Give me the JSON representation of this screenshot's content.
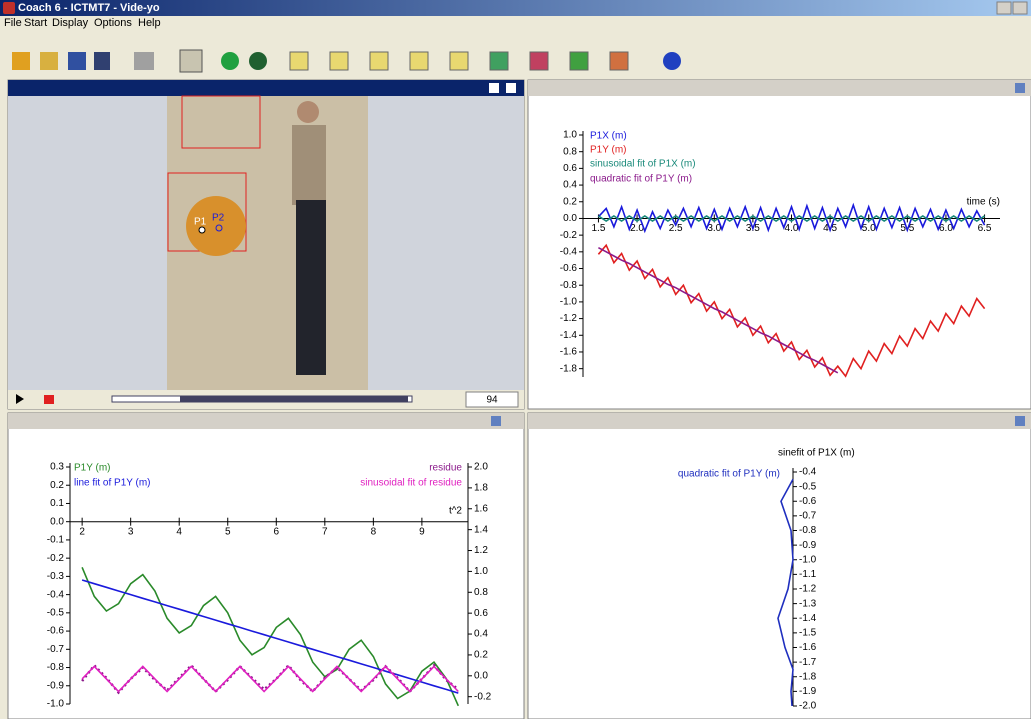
{
  "window": {
    "title": "Coach 6 - ICTMT7 - Vide-yo"
  },
  "menu": [
    "File",
    "Start",
    "Display",
    "Options",
    "Help"
  ],
  "video": {
    "point_labels": [
      "P1",
      "P2"
    ],
    "frame": "94"
  },
  "chart_data": [
    {
      "type": "line",
      "xlabel": "time (s)",
      "x": [
        1.5,
        1.6,
        1.7,
        1.8,
        1.9,
        2.0,
        2.1,
        2.2,
        2.3,
        2.4,
        2.5,
        2.6,
        2.7,
        2.8,
        2.9,
        3.0,
        3.1,
        3.2,
        3.3,
        3.4,
        3.5,
        3.6,
        3.7,
        3.8,
        3.9,
        4.0,
        4.1,
        4.2,
        4.3,
        4.4,
        4.5,
        4.6,
        4.7,
        4.8,
        4.9,
        5.0,
        5.1,
        5.2,
        5.3,
        5.4,
        5.5,
        5.6,
        5.7,
        5.8,
        5.9,
        6.0,
        6.1,
        6.2,
        6.3,
        6.4,
        6.5
      ],
      "xlim": [
        1.3,
        6.7
      ],
      "xticks": [
        1.5,
        {
          "value": 2,
          "label": "2.0"
        },
        2.5,
        {
          "value": 3,
          "label": "3.0"
        },
        3.5,
        {
          "value": 4,
          "label": "4.0"
        },
        4.5,
        {
          "value": 5,
          "label": "5.0"
        },
        5.5,
        {
          "value": 6,
          "label": "6.0"
        },
        6.5
      ],
      "ylim": [
        -1.9,
        1.0
      ],
      "yticks": [
        {
          "value": 1,
          "label": "1.0"
        },
        0.8,
        0.6,
        0.4,
        0.2,
        {
          "value": 0,
          "label": "0.0"
        },
        -0.2,
        -0.4,
        -0.6,
        -0.8,
        {
          "value": -1,
          "label": "-1.0"
        },
        -1.2,
        -1.4,
        -1.6,
        -1.8
      ],
      "series": [
        {
          "name": "P1X (m)",
          "color": "#1a1adc",
          "values": [
            0.02,
            0.12,
            -0.1,
            0.14,
            -0.13,
            0.1,
            -0.15,
            0.08,
            -0.12,
            0.1,
            -0.08,
            0.12,
            -0.1,
            0.13,
            -0.12,
            0.11,
            -0.13,
            0.12,
            -0.1,
            0.14,
            -0.12,
            0.13,
            -0.14,
            0.12,
            -0.11,
            0.14,
            -0.13,
            0.15,
            -0.12,
            0.13,
            -0.14,
            0.12,
            -0.1,
            0.16,
            -0.12,
            0.14,
            -0.13,
            0.12,
            -0.11,
            0.13,
            -0.14,
            0.12,
            -0.1,
            0.11,
            -0.13,
            0.1,
            -0.12,
            0.11,
            -0.1,
            0.09,
            -0.08
          ]
        },
        {
          "name": "P1Y (m)",
          "color": "#e02020",
          "values": [
            -0.43,
            -0.32,
            -0.53,
            -0.42,
            -0.62,
            -0.51,
            -0.72,
            -0.61,
            -0.82,
            -0.71,
            -0.91,
            -0.8,
            -1.01,
            -0.9,
            -1.11,
            -1,
            -1.2,
            -1.09,
            -1.3,
            -1.19,
            -1.4,
            -1.29,
            -1.49,
            -1.38,
            -1.59,
            -1.48,
            -1.69,
            -1.58,
            -1.78,
            -1.67,
            -1.88,
            -1.77,
            -1.89,
            -1.68,
            -1.8,
            -1.59,
            -1.71,
            -1.5,
            -1.62,
            -1.41,
            -1.53,
            -1.32,
            -1.44,
            -1.23,
            -1.35,
            -1.14,
            -1.26,
            -1.05,
            -1.17,
            -0.96,
            -1.08
          ]
        },
        {
          "name": "sinusoidal fit of P1X (m)",
          "color": "#1a8a7a",
          "values": [
            0.03,
            -0.03,
            0.03,
            -0.03,
            0.03,
            -0.03,
            0.03,
            -0.03,
            0.03,
            -0.03,
            0.03,
            -0.03,
            0.03,
            -0.03,
            0.03,
            -0.03,
            0.03,
            -0.03,
            0.03,
            -0.03,
            0.03,
            -0.03,
            0.03,
            -0.03,
            0.03,
            -0.03,
            0.03,
            -0.03,
            0.03,
            -0.03,
            0.03,
            -0.03,
            0.03,
            -0.03,
            0.03,
            -0.03,
            0.03,
            -0.03,
            0.03,
            -0.03,
            0.03,
            -0.03,
            0.03,
            -0.03,
            0.03,
            -0.03,
            0.03,
            -0.03,
            0.03,
            -0.03,
            0.03
          ]
        },
        {
          "name": "quadratic fit of P1Y (m)",
          "color": "#8b1a8b",
          "values": [
            -0.35,
            -0.4,
            -0.45,
            -0.5,
            -0.54,
            -0.59,
            -0.64,
            -0.69,
            -0.74,
            -0.79,
            -0.83,
            -0.88,
            -0.93,
            -0.98,
            -1.03,
            -1.08,
            -1.12,
            -1.17,
            -1.22,
            -1.27,
            -1.32,
            -1.37,
            -1.41,
            -1.46,
            -1.51,
            -1.56,
            -1.61,
            -1.66,
            -1.7,
            -1.75,
            -1.8,
            -1.85,
            null,
            null,
            null,
            null,
            null,
            null,
            null,
            null,
            null,
            null,
            null,
            null,
            null,
            null,
            null,
            null,
            null,
            null,
            null
          ]
        }
      ]
    },
    {
      "type": "line",
      "xlabel": "t^2",
      "x": [
        2,
        2.25,
        2.5,
        2.75,
        3,
        3.25,
        3.5,
        3.75,
        4,
        4.25,
        4.5,
        4.75,
        5,
        5.25,
        5.5,
        5.75,
        6,
        6.25,
        6.5,
        6.75,
        7,
        7.25,
        7.5,
        7.75,
        8,
        8.25,
        8.5,
        8.75,
        9,
        9.25,
        9.5,
        9.75
      ],
      "xlim": [
        1.75,
        9.95
      ],
      "xticks": [
        2,
        3,
        4,
        5,
        6,
        7,
        8,
        9
      ],
      "ylim": [
        -1.0,
        0.3
      ],
      "yticks": [
        0.3,
        0.2,
        0.1,
        {
          "value": 0,
          "label": "0.0"
        },
        -0.1,
        -0.2,
        -0.3,
        -0.4,
        -0.5,
        -0.6,
        -0.7,
        -0.8,
        -0.9,
        {
          "value": -1,
          "label": "-1.0"
        }
      ],
      "y2lim": [
        -0.27,
        2.0
      ],
      "y2ticks": [
        {
          "value": 2,
          "label": "2.0"
        },
        1.8,
        1.6,
        1.4,
        1.2,
        {
          "value": 1,
          "label": "1.0"
        },
        0.8,
        0.6,
        0.4,
        0.2,
        {
          "value": 0,
          "label": "0.0"
        },
        -0.2
      ],
      "series": [
        {
          "name": "P1Y (m)",
          "color": "#2a8a2a",
          "values": [
            -0.25,
            -0.41,
            -0.49,
            -0.45,
            -0.34,
            -0.29,
            -0.38,
            -0.53,
            -0.61,
            -0.57,
            -0.46,
            -0.41,
            -0.5,
            -0.65,
            -0.73,
            -0.69,
            -0.58,
            -0.53,
            -0.62,
            -0.77,
            -0.85,
            -0.81,
            -0.7,
            -0.65,
            -0.74,
            -0.89,
            -0.97,
            -0.93,
            -0.82,
            -0.77,
            -0.86,
            -1.01
          ]
        },
        {
          "name": "line fit of P1Y (m)",
          "color": "#1a1adc",
          "values": [
            -0.32,
            -0.34,
            -0.36,
            -0.38,
            -0.4,
            -0.42,
            -0.44,
            -0.46,
            -0.48,
            -0.5,
            -0.52,
            -0.54,
            -0.56,
            -0.58,
            -0.6,
            -0.62,
            -0.64,
            -0.66,
            -0.68,
            -0.7,
            -0.72,
            -0.74,
            -0.76,
            -0.78,
            -0.8,
            -0.82,
            -0.84,
            -0.86,
            -0.88,
            -0.9,
            -0.92,
            -0.94
          ]
        },
        {
          "name": "residue",
          "color": "#8b1a8b",
          "axis": "y2",
          "style": "dotted",
          "values": [
            -0.05,
            0.1,
            -0.02,
            -0.16,
            -0.03,
            0.08,
            -0.04,
            -0.14,
            -0.02,
            0.1,
            -0.03,
            -0.15,
            -0.04,
            0.09,
            -0.02,
            -0.13,
            -0.03,
            0.1,
            -0.04,
            -0.15,
            -0.02,
            0.08,
            -0.03,
            -0.14,
            -0.04,
            0.09,
            -0.02,
            -0.15,
            -0.03,
            0.1,
            -0.04,
            -0.13
          ]
        },
        {
          "name": "sinusoidal fit of residue",
          "color": "#e020c0",
          "axis": "y2",
          "values": [
            -0.03,
            0.09,
            -0.03,
            -0.15,
            -0.03,
            0.09,
            -0.03,
            -0.15,
            -0.03,
            0.09,
            -0.03,
            -0.15,
            -0.03,
            0.09,
            -0.03,
            -0.15,
            -0.03,
            0.09,
            -0.03,
            -0.15,
            -0.03,
            0.09,
            -0.03,
            -0.15,
            -0.03,
            0.09,
            -0.03,
            -0.15,
            -0.03,
            0.09,
            -0.03,
            -0.15
          ]
        }
      ]
    },
    {
      "type": "line",
      "xlabel": "sinefit of P1X (m)",
      "ylabel": "quadratic fit of P1Y (m)",
      "x": [
        0,
        -0.12,
        -0.02,
        0,
        -0.05,
        -0.15,
        -0.08,
        0,
        -0.02,
        -0.01
      ],
      "xlim": [
        -0.93,
        0.93
      ],
      "ylim": [
        -2.0,
        -0.4
      ],
      "yticks": [
        -0.4,
        -0.5,
        -0.6,
        -0.7,
        -0.8,
        -0.9,
        {
          "value": -1,
          "label": "-1.0"
        },
        -1.1,
        -1.2,
        -1.3,
        -1.4,
        -1.5,
        -1.6,
        -1.7,
        -1.8,
        -1.9,
        {
          "value": -2,
          "label": "-2.0"
        }
      ],
      "series": [
        {
          "color": "#1f2fbf",
          "values": [
            -0.45,
            -0.6,
            -0.8,
            -1.0,
            -1.2,
            -1.4,
            -1.6,
            -1.75,
            -1.9,
            -2.0
          ]
        }
      ]
    }
  ]
}
